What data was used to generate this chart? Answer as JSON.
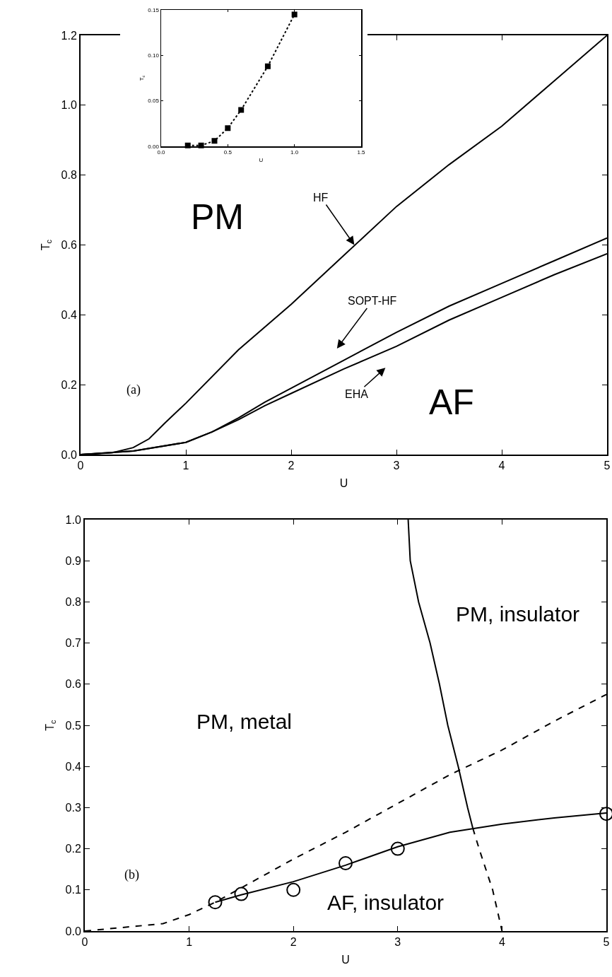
{
  "chart_data": [
    {
      "type": "line",
      "xlabel": "U",
      "ylabel": "T$_{c}$",
      "xlim": [
        0,
        5
      ],
      "ylim": [
        0,
        1.2
      ],
      "xticks": [
        0,
        1,
        2,
        3,
        4,
        5
      ],
      "yticks": [
        {
          "value": 0,
          "label": "0.0"
        },
        {
          "value": 0.2,
          "label": "0.2"
        },
        {
          "value": 0.4,
          "label": "0.4"
        },
        {
          "value": 0.6,
          "label": "0.6"
        },
        {
          "value": 0.8,
          "label": "0.8"
        },
        {
          "value": 1,
          "label": "1.0"
        },
        {
          "value": 1.2,
          "label": "1.2"
        }
      ],
      "grid": false,
      "marker": "none",
      "line_style": "solid",
      "series": [
        {
          "color": "#000000",
          "x": [
            0,
            0.3,
            0.5,
            0.65,
            0.8,
            1,
            1.5,
            2,
            2.5,
            3,
            3.5,
            4,
            4.5,
            5
          ],
          "values": [
            0,
            0.005,
            0.02,
            0.045,
            0.09,
            0.147,
            0.3,
            0.43,
            0.57,
            0.71,
            0.83,
            0.94,
            1.07,
            1.2
          ]
        },
        {
          "color": "#000000",
          "x": [
            0,
            0.5,
            1,
            1.25,
            1.5,
            1.75,
            2,
            2.5,
            3,
            3.5,
            4,
            4.5,
            5
          ],
          "values": [
            0,
            0.01,
            0.035,
            0.065,
            0.105,
            0.15,
            0.19,
            0.27,
            0.35,
            0.425,
            0.49,
            0.555,
            0.62
          ]
        },
        {
          "color": "#000000",
          "x": [
            0,
            0.5,
            1,
            1.25,
            1.5,
            1.75,
            2,
            2.5,
            3,
            3.5,
            4,
            4.5,
            5
          ],
          "values": [
            0,
            0.01,
            0.035,
            0.065,
            0.1,
            0.14,
            0.175,
            0.245,
            0.31,
            0.385,
            0.45,
            0.515,
            0.575
          ]
        }
      ],
      "annotations": [
        {
          "text": "HF",
          "x": 2.6,
          "y": 0.6
        },
        "SOPT-HF",
        "EHA",
        "PM",
        "AF",
        "(a)"
      ]
    },
    {
      "type": "line",
      "xlabel": "U",
      "ylabel": "T$_{c}$",
      "xlim": [
        0,
        1.5
      ],
      "ylim": [
        0,
        0.15
      ],
      "xticks": [
        {
          "value": 0,
          "label": "0.0"
        },
        {
          "value": 0.5,
          "label": "0.5"
        },
        {
          "value": 1,
          "label": "1.0"
        },
        {
          "value": 1.5,
          "label": "1.5"
        }
      ],
      "yticks": [
        {
          "value": 0,
          "label": "0.00"
        },
        {
          "value": 0.05,
          "label": "0.05"
        },
        {
          "value": 0.1,
          "label": "0.10"
        },
        {
          "value": 0.15,
          "label": "0.15"
        }
      ],
      "grid": false,
      "marker": "square",
      "line_style": "dotted",
      "series": [
        {
          "color": "#000000",
          "x": [
            0.2,
            0.3,
            0.4,
            0.5,
            0.6,
            0.8,
            1.0
          ],
          "values": [
            0.001,
            0.001,
            0.006,
            0.02,
            0.04,
            0.088,
            0.145
          ]
        }
      ]
    },
    {
      "type": "line",
      "xlabel": "U",
      "ylabel": "T$_{c}$",
      "xlim": [
        0,
        5
      ],
      "ylim": [
        0,
        1
      ],
      "xticks": [
        0,
        1,
        2,
        3,
        4,
        5
      ],
      "yticks": [
        {
          "value": 0,
          "label": "0.0"
        },
        {
          "value": 0.1,
          "label": "0.1"
        },
        {
          "value": 0.2,
          "label": "0.2"
        },
        {
          "value": 0.3,
          "label": "0.3"
        },
        {
          "value": 0.4,
          "label": "0.4"
        },
        {
          "value": 0.5,
          "label": "0.5"
        },
        {
          "value": 0.6,
          "label": "0.6"
        },
        {
          "value": 0.7,
          "label": "0.7"
        },
        {
          "value": 0.8,
          "label": "0.8"
        },
        {
          "value": 0.9,
          "label": "0.9"
        },
        {
          "value": 1,
          "label": "1.0"
        }
      ],
      "grid": false,
      "marker": "none",
      "line_style": "solid",
      "series": [
        {
          "color": "#000000",
          "line_style": "dashed",
          "x": [
            0,
            0.5,
            0.75,
            1,
            1.25,
            1.5,
            2,
            2.5,
            3,
            3.5,
            4,
            4.5,
            5
          ],
          "values": [
            0,
            0.012,
            0.018,
            0.04,
            0.07,
            0.105,
            0.175,
            0.24,
            0.31,
            0.38,
            0.44,
            0.51,
            0.575
          ]
        },
        {
          "color": "#000000",
          "x": [
            1.25,
            1.5,
            2,
            2.5,
            3,
            3.5,
            4,
            4.5,
            5
          ],
          "values": [
            0.07,
            0.088,
            0.12,
            0.16,
            0.205,
            0.24,
            0.26,
            0.275,
            0.287
          ]
        },
        {
          "color": "#000000",
          "type": "scatter",
          "marker": "circle",
          "x": [
            1.25,
            1.5,
            2,
            2.5,
            3,
            5
          ],
          "values": [
            0.07,
            0.09,
            0.1,
            0.165,
            0.2,
            0.285
          ]
        },
        {
          "color": "#000000",
          "x": [
            3.1,
            3.12,
            3.2,
            3.31,
            3.4,
            3.48,
            3.58,
            3.67,
            3.72
          ],
          "values": [
            1,
            0.9,
            0.8,
            0.7,
            0.6,
            0.5,
            0.4,
            0.3,
            0.25
          ]
        },
        {
          "color": "#000000",
          "line_style": "dashed",
          "x": [
            3.72,
            3.78,
            3.91,
            4.0
          ],
          "values": [
            0.25,
            0.2,
            0.1,
            0
          ]
        }
      ],
      "annotations": [
        "PM, metal",
        "PM, insulator",
        "AF, insulator",
        "(b)"
      ]
    }
  ]
}
